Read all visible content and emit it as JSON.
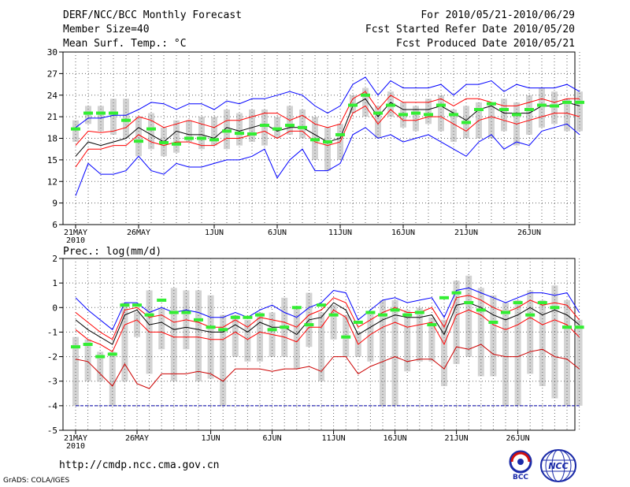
{
  "header": {
    "title": "DERF/NCC/BCC Monthly Forecast",
    "member": "Member Size=40",
    "forecast_period": "For 2010/05/21-2010/06/29",
    "refer_date": "Fcst Started Refer Date 2010/05/20",
    "produced_date": "Fcst Produced Date 2010/05/21"
  },
  "footer": {
    "url": "http://cmdp.ncc.cma.gov.cn",
    "credit": "GrADS: COLA/IGES",
    "logo_bcc": "BCC",
    "logo_ncc": "NCC"
  },
  "chart_data": [
    {
      "type": "line",
      "title": "Mean Surf. Temp.: °C",
      "xlabel": "",
      "ylabel": "",
      "ylim": [
        6,
        30
      ],
      "yticks": [
        6,
        9,
        12,
        15,
        18,
        21,
        24,
        27,
        30
      ],
      "x_tick_labels": [
        "21MAY",
        "26MAY",
        "1JUN",
        "6JUN",
        "11JUN",
        "16JUN",
        "21JUN",
        "26JUN"
      ],
      "x_tick_index": [
        0,
        5,
        11,
        16,
        21,
        26,
        31,
        36
      ],
      "year_label": "2010",
      "grid": "dotted",
      "series": [
        {
          "name": "max",
          "color": "#0000ff",
          "values": [
            19.5,
            20.8,
            20.8,
            21.2,
            21.2,
            22.0,
            23.0,
            22.8,
            22.0,
            22.8,
            22.8,
            22.0,
            23.2,
            22.8,
            23.5,
            23.5,
            24.0,
            24.5,
            24.0,
            22.5,
            21.5,
            22.5,
            25.5,
            26.5,
            24.0,
            26.0,
            25.0,
            25.0,
            25.0,
            25.5,
            24.0,
            25.5,
            25.5,
            26.0,
            24.5,
            25.5,
            25.0,
            25.0,
            25.0,
            25.5,
            24.5
          ]
        },
        {
          "name": "upper",
          "color": "#ff0000",
          "values": [
            17.0,
            19.0,
            18.8,
            19.0,
            19.5,
            21.0,
            20.5,
            19.5,
            20.0,
            20.5,
            20.0,
            19.5,
            20.5,
            20.5,
            21.0,
            21.5,
            21.5,
            20.5,
            21.2,
            20.0,
            19.5,
            20.0,
            23.5,
            24.5,
            22.0,
            24.0,
            23.0,
            23.0,
            23.0,
            23.5,
            22.5,
            23.5,
            23.5,
            23.0,
            22.5,
            22.5,
            23.0,
            23.5,
            23.0,
            23.5,
            23.5
          ]
        },
        {
          "name": "median",
          "color": "#000000",
          "values": [
            15.5,
            17.5,
            17.0,
            17.5,
            18.0,
            19.5,
            18.5,
            17.5,
            19.0,
            18.5,
            18.5,
            18.0,
            19.5,
            19.0,
            19.5,
            20.0,
            19.0,
            19.5,
            19.5,
            18.5,
            17.5,
            18.0,
            22.5,
            23.5,
            21.0,
            23.0,
            22.0,
            22.0,
            22.0,
            22.5,
            21.5,
            20.5,
            22.0,
            22.5,
            21.5,
            21.5,
            21.5,
            22.5,
            22.5,
            23.0,
            22.5
          ]
        },
        {
          "name": "lower",
          "color": "#ff0000",
          "values": [
            14.0,
            16.5,
            16.5,
            17.0,
            17.0,
            18.5,
            17.5,
            17.0,
            17.5,
            17.5,
            17.0,
            17.0,
            18.0,
            18.0,
            18.5,
            19.0,
            18.0,
            19.0,
            19.0,
            17.5,
            17.0,
            17.5,
            21.5,
            22.5,
            20.0,
            22.0,
            20.5,
            20.5,
            21.0,
            21.0,
            20.0,
            19.0,
            20.5,
            21.0,
            20.5,
            20.0,
            20.5,
            21.0,
            21.5,
            21.5,
            21.0
          ]
        },
        {
          "name": "min",
          "color": "#0000ff",
          "values": [
            10.0,
            14.5,
            13.0,
            13.0,
            13.5,
            15.5,
            13.5,
            13.0,
            14.5,
            14.0,
            14.0,
            14.5,
            15.0,
            15.0,
            15.5,
            16.5,
            12.5,
            15.0,
            16.5,
            13.5,
            13.5,
            14.5,
            18.5,
            19.5,
            18.0,
            18.5,
            17.5,
            18.0,
            18.5,
            17.5,
            16.5,
            15.5,
            17.5,
            18.5,
            16.5,
            17.5,
            17.0,
            19.0,
            19.5,
            20.0,
            18.5
          ]
        }
      ],
      "bars": {
        "name": "range",
        "color": "#d3d3d3",
        "low": [
          17.5,
          20.0,
          19.0,
          18.5,
          18.0,
          15.5,
          16.5,
          15.5,
          16.0,
          17.5,
          16.5,
          17.0,
          16.5,
          17.0,
          17.5,
          17.0,
          18.0,
          18.5,
          18.0,
          15.0,
          13.5,
          15.0,
          21.5,
          21.0,
          18.0,
          21.0,
          19.5,
          19.0,
          20.0,
          19.0,
          17.5,
          18.0,
          18.0,
          18.0,
          19.0,
          17.0,
          18.5,
          19.5,
          20.0,
          19.0,
          19.0
        ],
        "high": [
          20.5,
          22.5,
          22.5,
          23.5,
          23.5,
          21.0,
          21.5,
          19.5,
          20.5,
          20.5,
          21.0,
          21.0,
          22.0,
          21.5,
          22.0,
          22.0,
          21.0,
          22.5,
          22.0,
          21.0,
          19.5,
          20.0,
          24.0,
          25.0,
          22.5,
          24.5,
          23.0,
          22.5,
          23.5,
          24.0,
          22.0,
          22.5,
          23.0,
          23.0,
          23.5,
          23.0,
          24.0,
          25.0,
          24.5,
          23.5,
          24.5
        ]
      },
      "markers": {
        "name": "observed",
        "color": "#33ee33",
        "values": [
          19.3,
          21.5,
          21.5,
          21.5,
          20.5,
          17.6,
          19.3,
          17.4,
          17.2,
          18.0,
          18.0,
          17.8,
          19.0,
          18.7,
          18.6,
          19.8,
          19.3,
          19.8,
          19.5,
          17.8,
          17.5,
          18.5,
          22.6,
          24.0,
          21.5,
          22.6,
          21.3,
          21.5,
          21.3,
          22.6,
          21.3,
          20.2,
          22.0,
          22.8,
          22.0,
          21.3,
          22.0,
          22.6,
          22.5,
          23.0,
          23.0
        ]
      }
    },
    {
      "type": "line",
      "title": "Prec.: log(mm/d)",
      "xlabel": "",
      "ylabel": "",
      "ylim": [
        -5,
        2
      ],
      "yticks": [
        -5,
        -4,
        -3,
        -2,
        -1,
        0,
        1,
        2
      ],
      "x_tick_labels": [
        "21MAY",
        "26MAY",
        "1JUN",
        "6JUN",
        "11JUN",
        "16JUN",
        "21JUN",
        "26JUN"
      ],
      "x_tick_index": [
        0,
        5,
        11,
        16,
        21,
        26,
        31,
        36
      ],
      "year_label": "2010",
      "grid": "dotted",
      "reference_line": {
        "value": -4,
        "color": "#0000aa"
      },
      "series": [
        {
          "name": "max",
          "color": "#0000ff",
          "values": [
            0.4,
            -0.1,
            -0.5,
            -0.9,
            0.2,
            0.2,
            -0.2,
            0.0,
            -0.2,
            -0.1,
            -0.2,
            -0.4,
            -0.4,
            -0.2,
            -0.4,
            -0.1,
            0.1,
            -0.2,
            -0.4,
            0.0,
            0.2,
            0.7,
            0.6,
            -0.5,
            -0.1,
            0.3,
            0.4,
            0.2,
            0.3,
            0.4,
            -0.4,
            0.7,
            0.8,
            0.6,
            0.4,
            0.2,
            0.4,
            0.6,
            0.6,
            0.5,
            0.6,
            -0.2
          ]
        },
        {
          "name": "upper",
          "color": "#ff0000",
          "values": [
            -0.2,
            -0.6,
            -1.0,
            -1.3,
            -0.1,
            0.0,
            -0.4,
            -0.3,
            -0.6,
            -0.5,
            -0.6,
            -0.8,
            -0.8,
            -0.5,
            -0.8,
            -0.4,
            -0.5,
            -0.6,
            -0.8,
            -0.3,
            -0.1,
            0.4,
            0.2,
            -0.8,
            -0.5,
            -0.2,
            0.0,
            -0.2,
            -0.2,
            0.0,
            -0.8,
            0.4,
            0.5,
            0.3,
            0.0,
            -0.2,
            0.0,
            0.3,
            0.1,
            0.2,
            0.1,
            -0.5
          ]
        },
        {
          "name": "median",
          "color": "#000000",
          "values": [
            -0.5,
            -0.9,
            -1.2,
            -1.5,
            -0.3,
            -0.1,
            -0.7,
            -0.6,
            -0.9,
            -0.8,
            -0.9,
            -1.0,
            -1.0,
            -0.7,
            -1.0,
            -0.6,
            -0.8,
            -0.8,
            -1.1,
            -0.5,
            -0.4,
            0.2,
            -0.1,
            -1.1,
            -0.8,
            -0.5,
            -0.3,
            -0.4,
            -0.4,
            -0.3,
            -1.1,
            0.1,
            0.2,
            0.0,
            -0.3,
            -0.5,
            -0.3,
            0.0,
            -0.3,
            -0.1,
            -0.3,
            -0.7
          ]
        },
        {
          "name": "lower",
          "color": "#ff0000",
          "values": [
            -0.9,
            -1.3,
            -1.5,
            -1.8,
            -0.7,
            -0.5,
            -1.0,
            -1.0,
            -1.2,
            -1.2,
            -1.2,
            -1.3,
            -1.3,
            -1.0,
            -1.3,
            -1.0,
            -1.1,
            -1.2,
            -1.4,
            -0.8,
            -0.8,
            -0.1,
            -0.4,
            -1.5,
            -1.1,
            -0.8,
            -0.6,
            -0.8,
            -0.7,
            -0.6,
            -1.5,
            -0.3,
            -0.1,
            -0.3,
            -0.7,
            -0.9,
            -0.7,
            -0.4,
            -0.7,
            -0.5,
            -0.7,
            -1.2
          ]
        },
        {
          "name": "min",
          "color": "#cc0000",
          "values": [
            -2.1,
            -2.2,
            -2.7,
            -3.2,
            -2.3,
            -3.1,
            -3.3,
            -2.7,
            -2.7,
            -2.7,
            -2.6,
            -2.7,
            -3.0,
            -2.5,
            -2.5,
            -2.5,
            -2.6,
            -2.5,
            -2.5,
            -2.4,
            -2.6,
            -2.0,
            -2.0,
            -2.7,
            -2.4,
            -2.2,
            -2.0,
            -2.2,
            -2.1,
            -2.1,
            -2.5,
            -1.6,
            -1.7,
            -1.5,
            -1.9,
            -2.0,
            -2.0,
            -1.8,
            -1.7,
            -2.0,
            -2.1,
            -2.5
          ]
        }
      ],
      "bars": {
        "name": "range",
        "color": "#d3d3d3",
        "low": [
          -4.0,
          -3.0,
          -3.0,
          -4.0,
          -3.0,
          -1.2,
          -2.7,
          -1.7,
          -3.0,
          -1.7,
          -3.0,
          -2.9,
          -4.0,
          -2.0,
          -2.2,
          -2.2,
          -2.0,
          -2.0,
          -2.5,
          -1.6,
          -3.0,
          -1.3,
          -2.0,
          -2.0,
          -2.2,
          -4.0,
          -4.0,
          -2.6,
          -2.2,
          -2.2,
          -3.2,
          -2.3,
          -2.0,
          -2.8,
          -2.8,
          -4.0,
          -4.0,
          -2.7,
          -3.2,
          -3.7,
          -4.0,
          -4.0
        ],
        "high": [
          -1.2,
          -1.3,
          -1.8,
          -1.8,
          0.2,
          -0.2,
          0.7,
          0.0,
          0.8,
          0.7,
          0.7,
          0.5,
          -0.3,
          -0.3,
          -0.5,
          -0.2,
          -0.2,
          0.4,
          0.0,
          0.6,
          -0.2,
          0.1,
          -0.3,
          -1.0,
          -0.2,
          0.3,
          0.3,
          -0.1,
          0.0,
          -0.4,
          -0.5,
          1.1,
          1.3,
          0.8,
          0.5,
          0.2,
          0.3,
          0.7,
          0.3,
          0.9,
          0.3,
          -0.5
        ]
      },
      "markers": {
        "name": "observed",
        "color": "#33ee33",
        "values": [
          -1.6,
          -1.5,
          -2.0,
          -1.9,
          0.1,
          0.1,
          -0.3,
          0.3,
          -0.2,
          -0.2,
          -0.5,
          -0.8,
          -0.9,
          -0.4,
          -0.4,
          -0.3,
          -0.9,
          -0.8,
          0.0,
          -0.7,
          0.1,
          -0.3,
          -1.2,
          -0.6,
          -0.2,
          -0.3,
          -0.1,
          -0.3,
          -0.2,
          -0.7,
          0.4,
          0.6,
          0.2,
          -0.1,
          -0.6,
          -0.2,
          0.2,
          -0.3,
          0.2,
          0.0,
          -0.8,
          -0.8
        ]
      }
    }
  ]
}
